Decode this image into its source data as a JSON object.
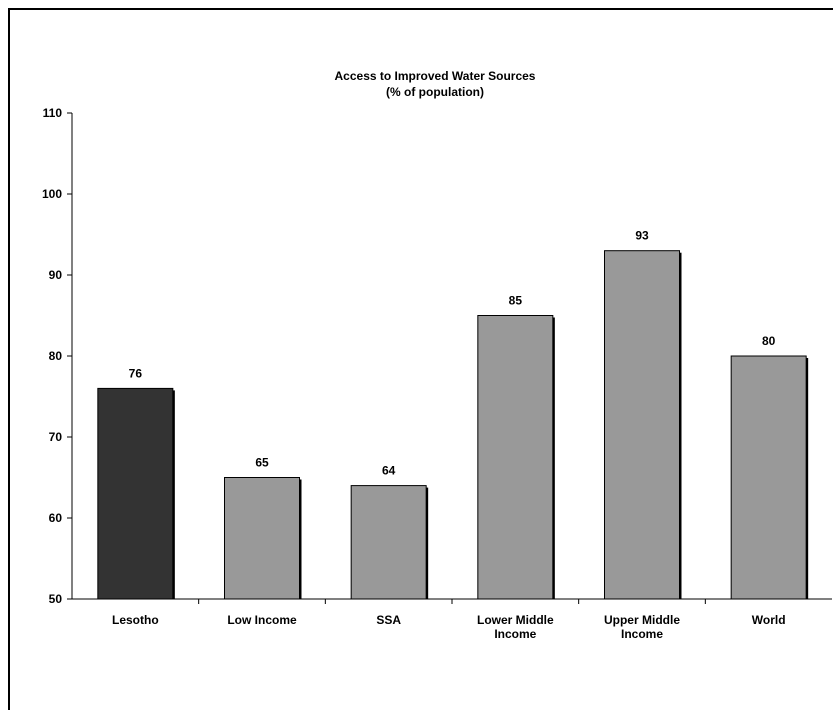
{
  "chart_data": {
    "type": "bar",
    "title": "Access to Improved Water Sources",
    "subtitle": "(% of population)",
    "categories": [
      [
        "Lesotho"
      ],
      [
        "Low Income"
      ],
      [
        "SSA"
      ],
      [
        "Lower Middle",
        "Income"
      ],
      [
        "Upper Middle",
        "Income"
      ],
      [
        "World"
      ]
    ],
    "values": [
      76,
      65,
      64,
      85,
      93,
      80
    ],
    "value_labels": [
      "76",
      "65",
      "64",
      "85",
      "93",
      "80"
    ],
    "highlight_index": 0,
    "colors": {
      "highlight": "#333333",
      "bar": "#999999",
      "shadow": "#000000",
      "axis": "#000000"
    },
    "ylim": [
      50,
      110
    ],
    "yticks": [
      50,
      60,
      70,
      80,
      90,
      100,
      110
    ],
    "ytick_labels": [
      "50",
      "60",
      "70",
      "80",
      "90",
      "100",
      "110"
    ],
    "grid": false,
    "legend": "none"
  }
}
